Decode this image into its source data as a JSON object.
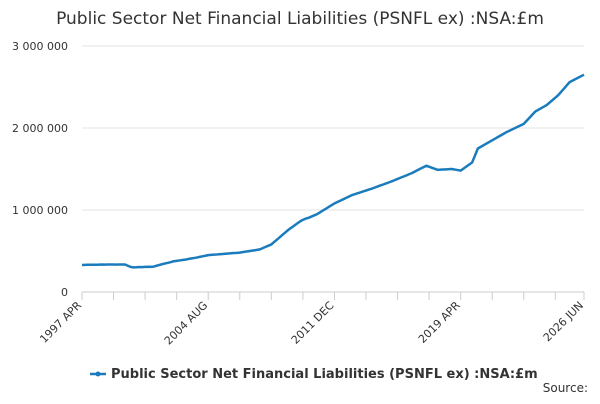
{
  "chart_data": {
    "type": "line",
    "title": "Public Sector Net Financial Liabilities (PSNFL ex) :NSA:£m",
    "source": "Source:",
    "categories": [
      "1997 APR",
      null,
      null,
      null,
      null,
      null,
      null,
      null,
      null,
      null,
      null,
      null,
      null,
      null,
      null,
      null,
      null,
      null,
      null,
      null,
      null,
      null,
      null,
      null,
      null,
      null,
      null,
      null,
      null,
      null,
      null,
      null,
      null,
      null,
      null,
      null,
      null,
      null,
      null,
      null,
      null,
      null,
      null,
      null,
      "2004 AUG",
      null,
      null,
      null,
      null,
      null,
      null,
      null,
      null,
      null,
      null,
      null,
      null,
      null,
      null,
      null,
      null,
      null,
      null,
      null,
      null,
      null,
      null,
      null,
      null,
      null,
      null,
      null,
      null,
      null,
      null,
      null,
      null,
      null,
      null,
      null,
      null,
      null,
      null,
      null,
      null,
      null,
      null,
      null,
      "2011 DEC",
      null,
      null,
      null,
      null,
      null,
      null,
      null,
      null,
      null,
      null,
      null,
      null,
      null,
      null,
      null,
      null,
      null,
      null,
      null,
      null,
      null,
      null,
      null,
      null,
      null,
      null,
      null,
      null,
      null,
      null,
      null,
      null,
      null,
      null,
      null,
      null,
      null,
      null,
      null,
      null,
      null,
      null,
      null,
      "2019 APR",
      null,
      null,
      null,
      null,
      null,
      null,
      null,
      null,
      null,
      null,
      null,
      null,
      null,
      null,
      null,
      null,
      null,
      null,
      null,
      null,
      null,
      null,
      null,
      null,
      null,
      null,
      null,
      null,
      null,
      null,
      null,
      null,
      null,
      null,
      null,
      null,
      null,
      null,
      null,
      null,
      null,
      null,
      "2026 JUN"
    ],
    "series": [
      {
        "name": "Public Sector Net Financial Liabilities (PSNFL ex) :NSA:£m",
        "color": "#1a7cbc",
        "values": [
          330000,
          331000,
          332000,
          333000,
          332000,
          333000,
          334000,
          335000,
          334000,
          335000,
          336000,
          335000,
          334000,
          335000,
          336000,
          335000,
          320000,
          305000,
          300000,
          302000,
          305000,
          303000,
          306000,
          308000,
          307000,
          310000,
          320000,
          330000,
          340000,
          348000,
          356000,
          365000,
          375000,
          380000,
          385000,
          390000,
          395000,
          402000,
          408000,
          414000,
          420000,
          428000,
          435000,
          442000,
          450000,
          453000,
          456000,
          458000,
          461000,
          464000,
          467000,
          469000,
          472000,
          475000,
          477000,
          480000,
          486000,
          492000,
          497000,
          503000,
          508000,
          514000,
          520000,
          535000,
          550000,
          565000,
          580000,
          610000,
          640000,
          670000,
          700000,
          730000,
          760000,
          785000,
          810000,
          835000,
          860000,
          880000,
          895000,
          905000,
          920000,
          935000,
          950000,
          972000,
          994000,
          1015000,
          1037000,
          1058000,
          1080000,
          1097000,
          1113000,
          1130000,
          1147000,
          1163000,
          1180000,
          1191000,
          1203000,
          1214000,
          1226000,
          1237000,
          1249000,
          1260000,
          1273000,
          1286000,
          1299000,
          1311000,
          1324000,
          1337000,
          1350000,
          1364000,
          1379000,
          1393000,
          1407000,
          1421000,
          1436000,
          1450000,
          1468000,
          1486000,
          1504000,
          1522000,
          1540000,
          1528000,
          1515000,
          1502000,
          1490000,
          1492000,
          1494000,
          1496000,
          1498000,
          1500000,
          1493000,
          1487000,
          1480000,
          1505000,
          1530000,
          1555000,
          1580000,
          1665000,
          1750000,
          1770000,
          1790000,
          1810000,
          1830000,
          1850000,
          1870000,
          1890000,
          1910000,
          1930000,
          1950000,
          1967000,
          1983000,
          2000000,
          2017000,
          2033000,
          2050000,
          2088000,
          2125000,
          2163000,
          2200000,
          2220000,
          2240000,
          2260000,
          2280000,
          2310000,
          2340000,
          2370000,
          2400000,
          2440000,
          2480000,
          2520000,
          2560000,
          2578000,
          2596000,
          2614000,
          2632000,
          2650000
        ]
      }
    ],
    "ylim": [
      0,
      3000000
    ],
    "yticks": [
      0,
      {
        "value": 1000000,
        "label": "1 000 000"
      },
      {
        "value": 2000000,
        "label": "2 000 000"
      },
      {
        "value": 3000000,
        "label": "3 000 000"
      }
    ],
    "grid": true
  }
}
